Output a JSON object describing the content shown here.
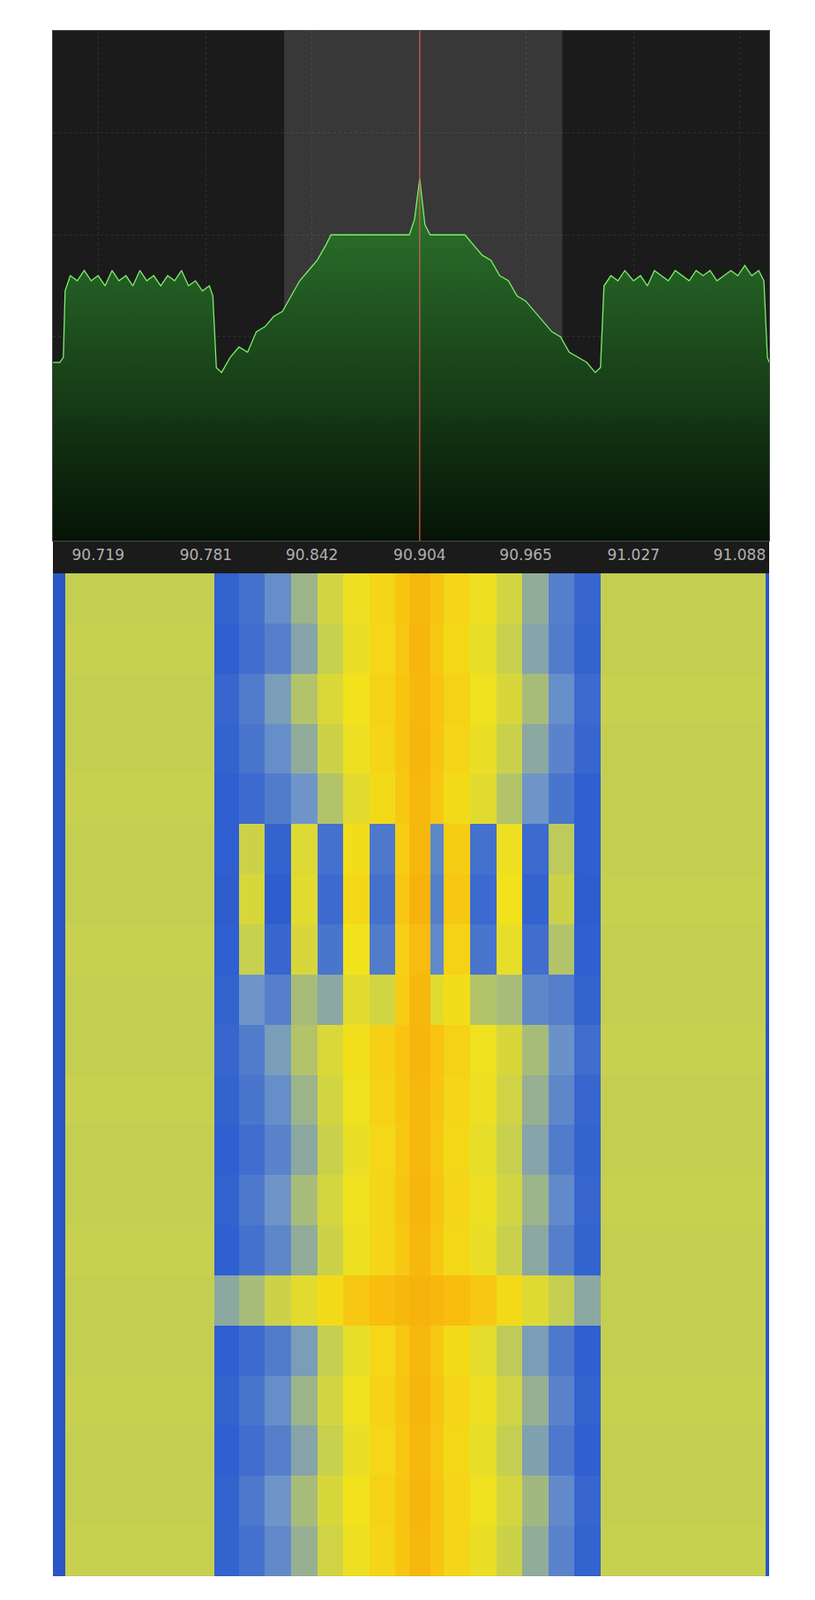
{
  "chart_data": {
    "type": "spectrum_waterfall",
    "xlim": [
      90.693,
      91.105
    ],
    "xticks": [
      90.719,
      90.781,
      90.842,
      90.904,
      90.965,
      91.027,
      91.088
    ],
    "ylim": [
      0,
      100
    ],
    "yticks": [
      0,
      20,
      40,
      60,
      80,
      100
    ],
    "tick_labels": "x",
    "grid": true,
    "passband": [
      90.826,
      90.986
    ],
    "marker_frequency": 90.904,
    "series": [
      {
        "type": "area",
        "color": "#7cf06a",
        "x": [
          90.693,
          90.697,
          90.699,
          90.7,
          90.703,
          90.707,
          90.711,
          90.715,
          90.719,
          90.723,
          90.727,
          90.731,
          90.735,
          90.739,
          90.743,
          90.747,
          90.751,
          90.755,
          90.759,
          90.763,
          90.767,
          90.771,
          90.775,
          90.779,
          90.783,
          90.785,
          90.787,
          90.79,
          90.795,
          90.8,
          90.805,
          90.81,
          90.815,
          90.82,
          90.825,
          90.83,
          90.835,
          90.84,
          90.845,
          90.85,
          90.853,
          90.86,
          90.87,
          90.88,
          90.89,
          90.898,
          90.901,
          90.903,
          90.904,
          90.905,
          90.907,
          90.91,
          90.92,
          90.93,
          90.935,
          90.94,
          90.945,
          90.95,
          90.955,
          90.96,
          90.965,
          90.97,
          90.975,
          90.98,
          90.985,
          90.99,
          90.995,
          91.0,
          91.005,
          91.008,
          91.01,
          91.014,
          91.018,
          91.022,
          91.027,
          91.031,
          91.035,
          91.039,
          91.043,
          91.047,
          91.051,
          91.055,
          91.059,
          91.063,
          91.067,
          91.071,
          91.075,
          91.079,
          91.083,
          91.087,
          91.091,
          91.095,
          91.099,
          91.102,
          91.104,
          91.105
        ],
        "values": [
          35,
          35,
          36,
          49,
          52,
          51,
          53,
          51,
          52,
          50,
          53,
          51,
          52,
          50,
          53,
          51,
          52,
          50,
          52,
          51,
          53,
          50,
          51,
          49,
          50,
          48,
          34,
          33,
          36,
          38,
          37,
          41,
          42,
          44,
          45,
          48,
          51,
          53,
          55,
          58,
          60,
          60,
          60,
          60,
          60,
          60,
          63,
          68,
          71,
          68,
          62,
          60,
          60,
          60,
          58,
          56,
          55,
          52,
          51,
          48,
          47,
          45,
          43,
          41,
          40,
          37,
          36,
          35,
          33,
          34,
          50,
          52,
          51,
          53,
          51,
          52,
          50,
          53,
          52,
          51,
          53,
          52,
          51,
          53,
          52,
          53,
          51,
          52,
          53,
          52,
          54,
          52,
          53,
          51,
          36,
          35
        ]
      }
    ],
    "waterfall": {
      "type": "heatmap",
      "color_range": [
        0,
        100
      ],
      "x_edges": [
        90.693,
        90.7,
        90.786,
        90.8,
        90.815,
        90.83,
        90.845,
        90.86,
        90.875,
        90.89,
        90.898,
        90.91,
        90.918,
        90.933,
        90.948,
        90.963,
        90.978,
        90.993,
        91.008,
        91.103,
        91.105
      ],
      "rows": [
        [
          20,
          55,
          26,
          30,
          38,
          48,
          60,
          70,
          77,
          83,
          88,
          83,
          77,
          70,
          60,
          46,
          34,
          27,
          55,
          20
        ],
        [
          20,
          56,
          25,
          29,
          34,
          44,
          56,
          69,
          76,
          82,
          89,
          82,
          76,
          68,
          56,
          44,
          33,
          26,
          55,
          20
        ],
        [
          20,
          55,
          27,
          33,
          42,
          52,
          63,
          72,
          78,
          84,
          88,
          84,
          78,
          71,
          62,
          50,
          38,
          28,
          56,
          20
        ],
        [
          20,
          55,
          26,
          31,
          38,
          46,
          58,
          70,
          77,
          83,
          89,
          83,
          77,
          69,
          57,
          45,
          35,
          27,
          55,
          20
        ],
        [
          20,
          56,
          25,
          28,
          33,
          40,
          52,
          66,
          75,
          82,
          88,
          82,
          75,
          66,
          52,
          40,
          31,
          25,
          55,
          20
        ],
        [
          20,
          55,
          25,
          58,
          26,
          64,
          30,
          74,
          32,
          80,
          88,
          36,
          80,
          30,
          70,
          28,
          54,
          25,
          55,
          20
        ],
        [
          20,
          55,
          24,
          62,
          24,
          66,
          28,
          76,
          30,
          82,
          90,
          34,
          82,
          28,
          72,
          26,
          58,
          24,
          56,
          20
        ],
        [
          20,
          56,
          25,
          56,
          27,
          62,
          31,
          72,
          33,
          79,
          87,
          37,
          78,
          31,
          68,
          29,
          52,
          25,
          55,
          20
        ],
        [
          20,
          55,
          26,
          40,
          34,
          50,
          45,
          66,
          60,
          80,
          88,
          66,
          74,
          52,
          50,
          36,
          34,
          26,
          55,
          20
        ],
        [
          20,
          55,
          27,
          33,
          42,
          52,
          63,
          73,
          79,
          84,
          89,
          84,
          78,
          71,
          62,
          50,
          39,
          29,
          56,
          20
        ],
        [
          20,
          56,
          26,
          31,
          38,
          48,
          60,
          71,
          78,
          83,
          88,
          83,
          77,
          70,
          59,
          47,
          36,
          27,
          55,
          20
        ],
        [
          20,
          55,
          25,
          29,
          35,
          45,
          57,
          69,
          76,
          82,
          88,
          82,
          76,
          68,
          56,
          44,
          33,
          26,
          55,
          20
        ],
        [
          20,
          55,
          26,
          32,
          40,
          50,
          61,
          71,
          77,
          83,
          89,
          83,
          77,
          70,
          60,
          48,
          37,
          27,
          56,
          20
        ],
        [
          20,
          56,
          25,
          30,
          36,
          46,
          58,
          70,
          77,
          82,
          88,
          82,
          76,
          69,
          57,
          45,
          34,
          26,
          55,
          20
        ],
        [
          20,
          55,
          45,
          50,
          58,
          66,
          75,
          82,
          86,
          88,
          90,
          88,
          86,
          82,
          75,
          65,
          55,
          45,
          55,
          20
        ],
        [
          20,
          55,
          25,
          28,
          33,
          42,
          55,
          68,
          76,
          82,
          88,
          82,
          75,
          67,
          54,
          42,
          32,
          25,
          55,
          20
        ],
        [
          20,
          56,
          26,
          31,
          38,
          48,
          60,
          71,
          78,
          83,
          89,
          83,
          77,
          70,
          59,
          47,
          35,
          26,
          56,
          20
        ],
        [
          20,
          55,
          25,
          29,
          34,
          44,
          56,
          69,
          76,
          82,
          88,
          82,
          76,
          68,
          55,
          43,
          32,
          25,
          55,
          20
        ],
        [
          20,
          55,
          26,
          32,
          40,
          50,
          62,
          72,
          78,
          83,
          89,
          83,
          77,
          71,
          61,
          49,
          37,
          27,
          55,
          20
        ],
        [
          20,
          56,
          26,
          30,
          37,
          47,
          59,
          70,
          77,
          83,
          88,
          83,
          77,
          69,
          58,
          46,
          35,
          26,
          56,
          20
        ]
      ]
    }
  }
}
